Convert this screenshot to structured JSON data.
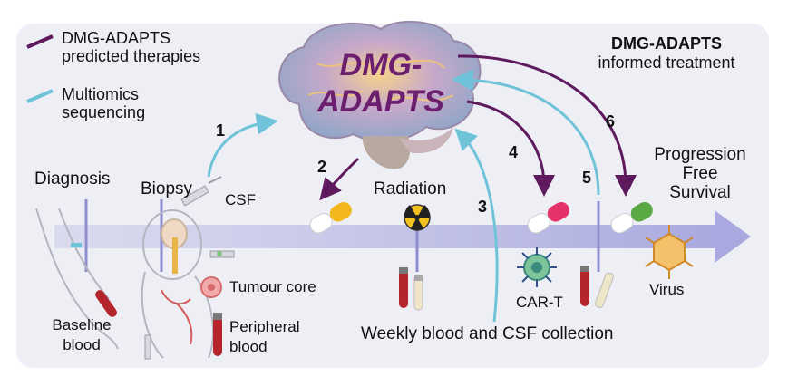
{
  "legend": {
    "predicted_label": "DMG-ADAPTS\npredicted therapies",
    "sequencing_label": "Multiomics\nsequencing",
    "predicted_color": "#5e1a5e",
    "sequencing_color": "#6fc3d9"
  },
  "brain": {
    "title_line1": "DMG-",
    "title_line2": "ADAPTS"
  },
  "informed": {
    "title": "DMG-ADAPTS",
    "subtitle": "informed treatment"
  },
  "timeline": {
    "diagnosis": "Diagnosis",
    "biopsy": "Biopsy",
    "radiation": "Radiation",
    "outcome": "Progression\nFree\nSurvival"
  },
  "samples": {
    "csf": "CSF",
    "tumour_core": "Tumour core",
    "peripheral_blood": "Peripheral\nblood",
    "baseline_blood": "Baseline\nblood",
    "weekly": "Weekly blood and CSF collection"
  },
  "therapies": {
    "car_t": "CAR-T",
    "virus": "Virus"
  },
  "steps": [
    "1",
    "2",
    "3",
    "4",
    "5",
    "6"
  ],
  "icons": [
    "brain-icon",
    "child-patient-icon",
    "arm-icon",
    "syringe-icon",
    "radiation-icon",
    "pill-icon",
    "blood-tube-icon",
    "car-t-cell-icon",
    "virus-icon"
  ]
}
